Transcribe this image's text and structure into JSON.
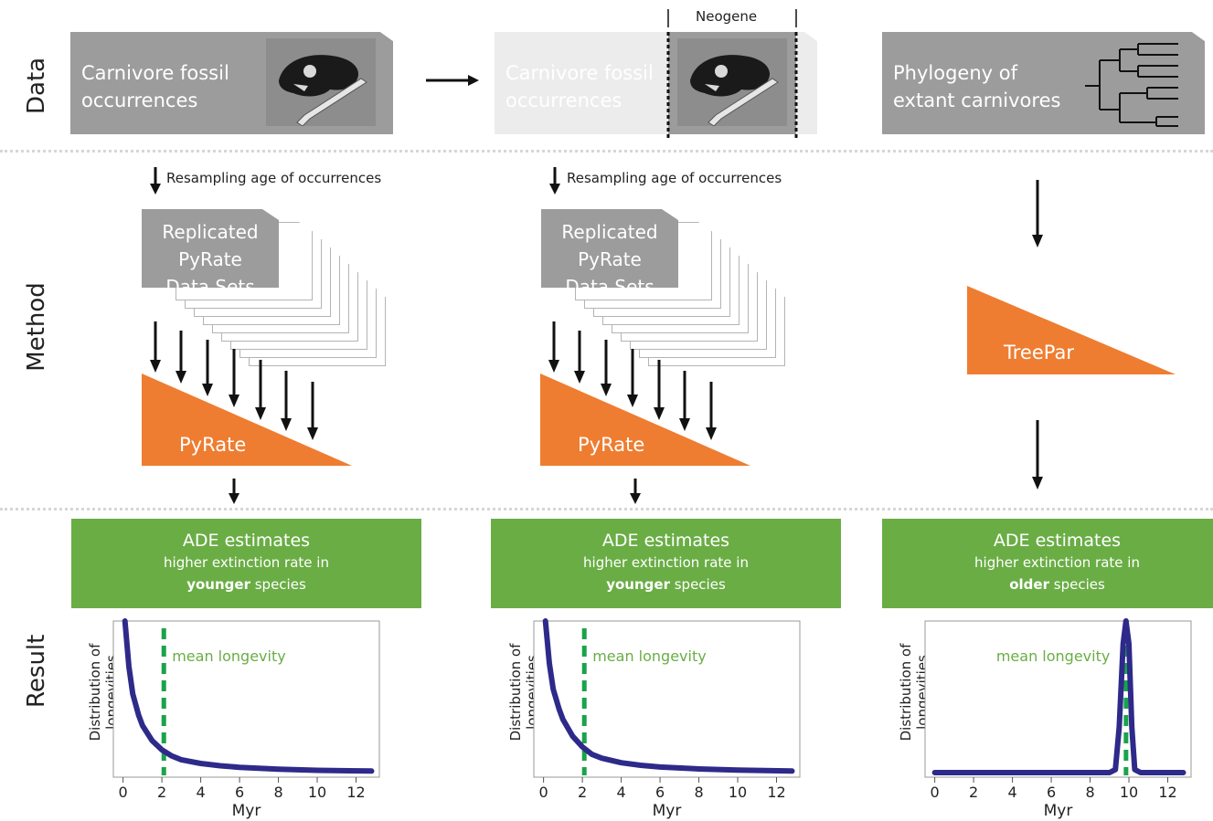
{
  "rows": {
    "data": "Data",
    "method": "Method",
    "result": "Result"
  },
  "columns": [
    {
      "data_box": {
        "line1": "Carnivore fossil",
        "line2": "occurrences"
      },
      "resample_label": "Resampling age of occurrences",
      "sheets": {
        "line1": "Replicated",
        "line2": "PyRate",
        "line3": "Data Sets"
      },
      "method_label": "PyRate",
      "result": {
        "title": "ADE estimates",
        "line2": "higher extinction rate in",
        "bold": "younger",
        "rest": " species"
      },
      "chart": {
        "annotation": "mean longevity",
        "ylabel1": "Distribution of",
        "ylabel2": "longevities",
        "xlabel": "Myr"
      }
    },
    {
      "data_box": {
        "line1": "Carnivore fossil",
        "line2": "occurrences"
      },
      "neogene_label": "Neogene",
      "resample_label": "Resampling age of occurrences",
      "sheets": {
        "line1": "Replicated",
        "line2": "PyRate",
        "line3": "Data Sets"
      },
      "method_label": "PyRate",
      "result": {
        "title": "ADE estimates",
        "line2": "higher extinction rate in",
        "bold": "younger",
        "rest": " species"
      },
      "chart": {
        "annotation": "mean longevity",
        "ylabel1": "Distribution of",
        "ylabel2": "longevities",
        "xlabel": "Myr"
      }
    },
    {
      "data_box": {
        "line1": "Phylogeny of",
        "line2": "extant carnivores"
      },
      "method_label": "TreePar",
      "result": {
        "title": "ADE estimates",
        "line2": "higher extinction rate in",
        "bold": "older",
        "rest": " species"
      },
      "chart": {
        "annotation": "mean longevity",
        "ylabel1": "Distribution of",
        "ylabel2": "longevities",
        "xlabel": "Myr"
      }
    }
  ],
  "icons": [
    "skull-bone-image",
    "phylogeny-tree-icon",
    "arrow-down-icon",
    "arrow-right-icon"
  ],
  "colors": {
    "orange": "#ee7d31",
    "green": "#6aad45",
    "curve": "#2e2a8a",
    "mean_line": "#1aa34a",
    "grey": "#9c9c9c"
  },
  "chart_data": [
    {
      "type": "line",
      "title": "",
      "xlabel": "Myr",
      "ylabel": "Distribution of longevities",
      "xlim": [
        -0.5,
        13.2
      ],
      "xticks": [
        "0",
        "2",
        "4",
        "6",
        "8",
        "10",
        "12"
      ],
      "series": [
        {
          "x": [
            0.1,
            0.3,
            0.5,
            0.8,
            1.0,
            1.5,
            2.0,
            2.5,
            3.0,
            4.0,
            5.0,
            6.0,
            8.0,
            10.0,
            12.8
          ],
          "y": [
            1.0,
            0.7,
            0.52,
            0.38,
            0.31,
            0.21,
            0.15,
            0.11,
            0.085,
            0.06,
            0.045,
            0.035,
            0.022,
            0.015,
            0.01
          ]
        }
      ],
      "mean_line_x": 2.1,
      "annotation": "mean longevity"
    },
    {
      "type": "line",
      "title": "",
      "xlabel": "Myr",
      "ylabel": "Distribution of longevities",
      "xlim": [
        -0.5,
        13.2
      ],
      "xticks": [
        "0",
        "2",
        "4",
        "6",
        "8",
        "10",
        "12"
      ],
      "series": [
        {
          "x": [
            0.1,
            0.3,
            0.5,
            0.8,
            1.0,
            1.5,
            2.0,
            2.5,
            3.0,
            4.0,
            5.0,
            6.0,
            8.0,
            10.0,
            12.8
          ],
          "y": [
            1.0,
            0.72,
            0.55,
            0.42,
            0.35,
            0.24,
            0.17,
            0.12,
            0.095,
            0.065,
            0.048,
            0.037,
            0.024,
            0.016,
            0.01
          ]
        }
      ],
      "mean_line_x": 2.1,
      "annotation": "mean longevity"
    },
    {
      "type": "line",
      "title": "",
      "xlabel": "Myr",
      "ylabel": "Distribution of longevities",
      "xlim": [
        -0.5,
        13.2
      ],
      "xticks": [
        "0",
        "2",
        "4",
        "6",
        "8",
        "10",
        "12"
      ],
      "series": [
        {
          "x": [
            0,
            9.0,
            9.3,
            9.5,
            9.7,
            9.85,
            10.0,
            10.15,
            10.3,
            10.6,
            12.8
          ],
          "y": [
            0,
            0,
            0.02,
            0.3,
            0.85,
            1.0,
            0.85,
            0.3,
            0.02,
            0,
            0
          ]
        }
      ],
      "mean_line_x": 9.85,
      "annotation": "mean longevity"
    }
  ]
}
